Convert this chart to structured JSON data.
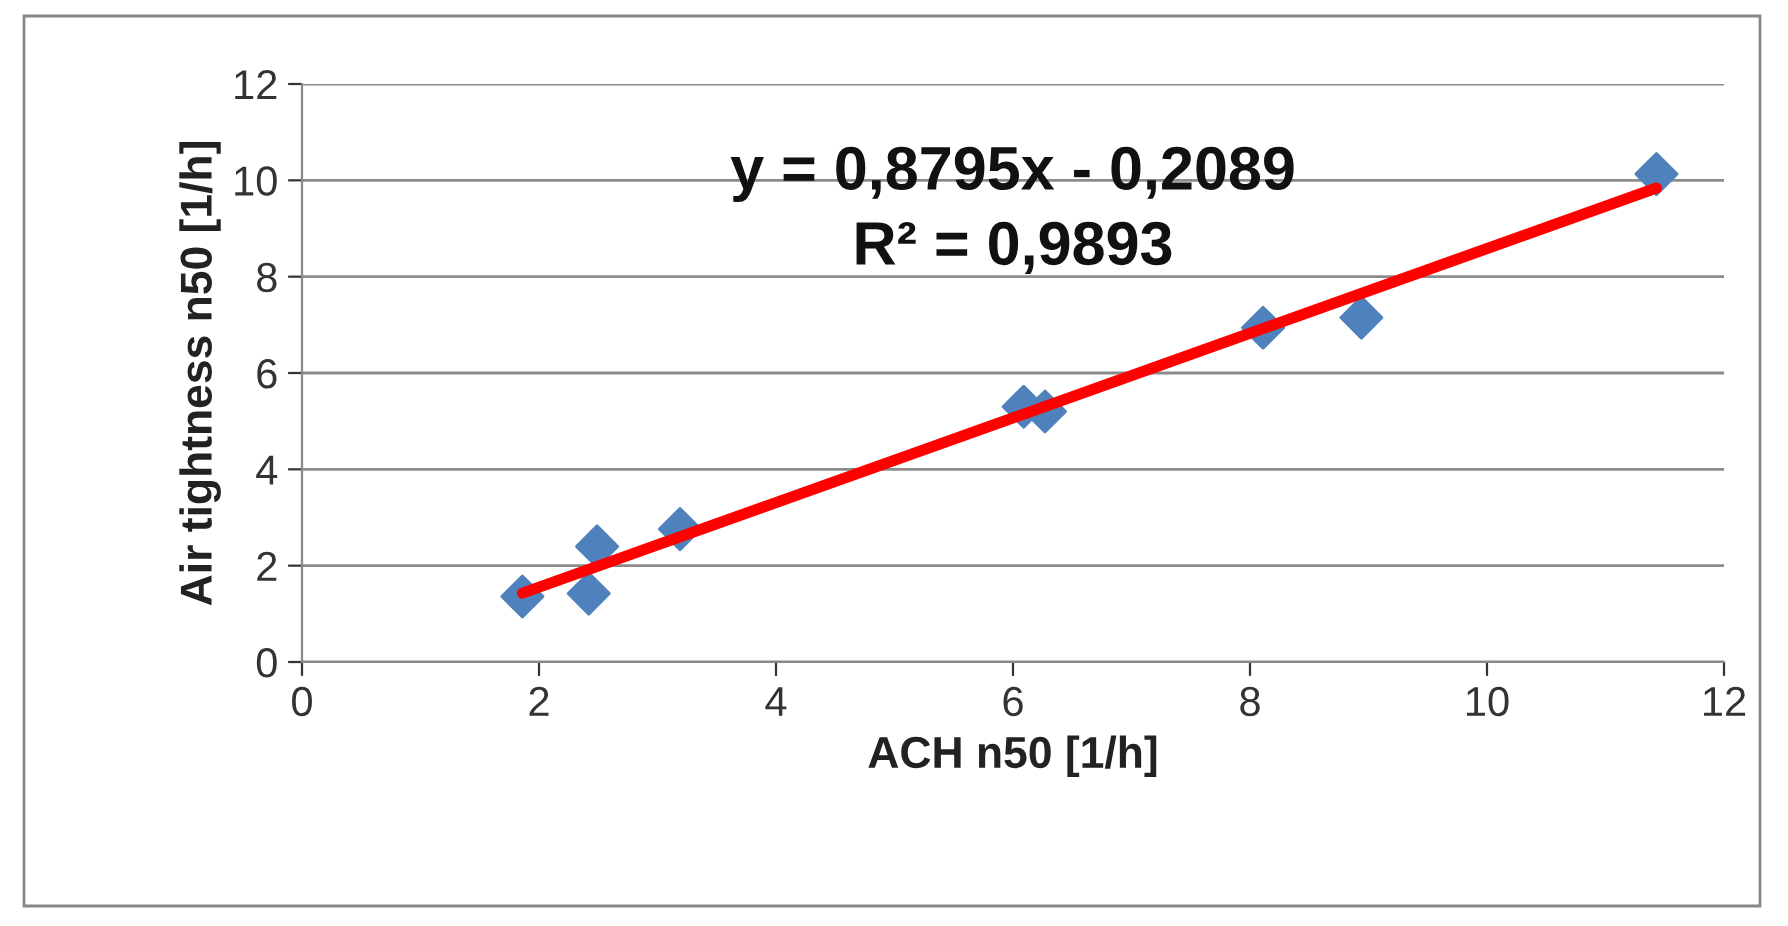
{
  "chart_data": {
    "type": "scatter",
    "xlabel": "ACH n50 [1/h]",
    "ylabel": "Air tightness n50 [1/h]",
    "series": [
      {
        "color": "#4f81bd",
        "marker": "diamond",
        "x": [
          1.86,
          2.42,
          2.49,
          3.19,
          6.09,
          6.27,
          8.11,
          8.94,
          11.43
        ],
        "values": [
          1.36,
          1.42,
          2.4,
          2.76,
          5.3,
          5.2,
          6.94,
          7.15,
          10.13
        ]
      },
      {
        "type": "line",
        "color": "#ff0000",
        "marker": "none",
        "x": [
          1.86,
          11.43
        ],
        "values": [
          1.43,
          9.84
        ]
      }
    ],
    "annotations": [
      "y = 0,8795x - 0,2089",
      "R² = 0,9893"
    ],
    "xlim": [
      0,
      12
    ],
    "xticks": [
      0,
      2,
      4,
      6,
      8,
      10,
      12
    ],
    "ylim": [
      0,
      12
    ],
    "yticks": [
      0,
      2,
      4,
      6,
      8,
      10,
      12
    ],
    "grid": "y",
    "legend": false
  }
}
